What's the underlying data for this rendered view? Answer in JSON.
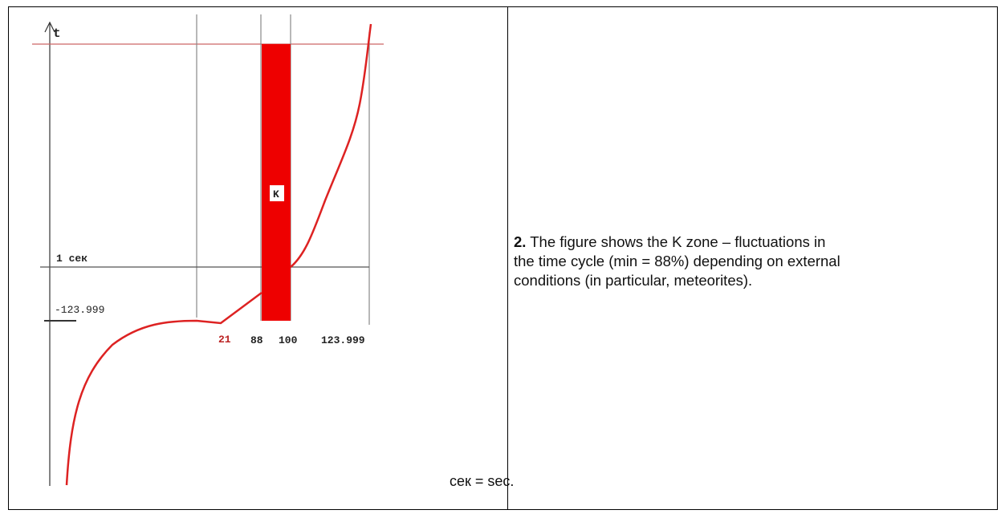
{
  "figure": {
    "axis_label": "t",
    "labels": {
      "one_sec": "1 сек",
      "neg": "-123.999",
      "start": "21",
      "k_min": "88",
      "k_max": "100",
      "pos": "123.999",
      "zone": "K"
    },
    "footnote": "сек = sec."
  },
  "caption": {
    "number": "2.",
    "lines": [
      "The figure shows the K zone – fluctuations in",
      "the time cycle (min = 88%) depending on external",
      "conditions (in particular, meteorites)."
    ]
  }
}
